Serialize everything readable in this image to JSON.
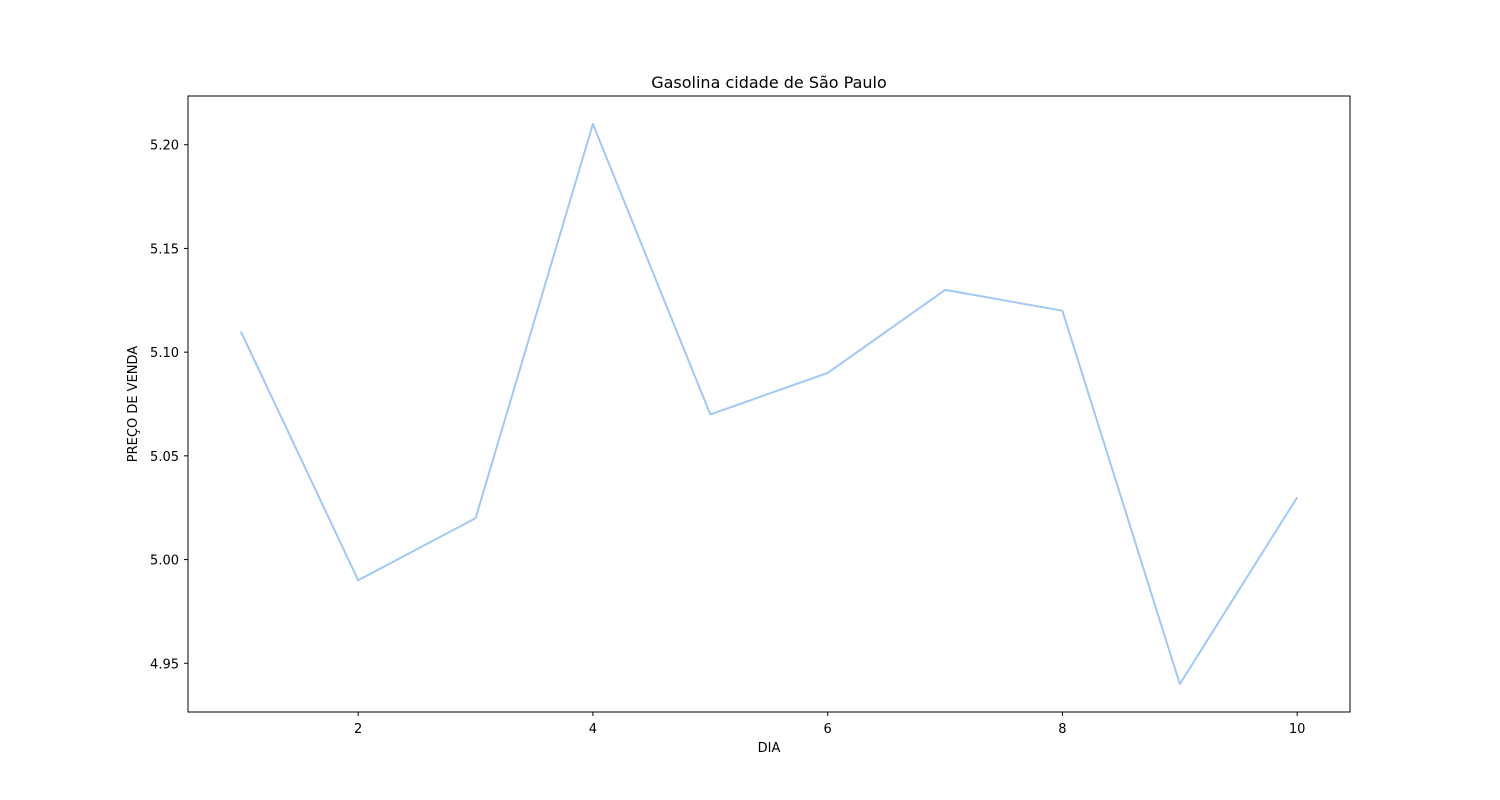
{
  "chart_data": {
    "type": "line",
    "title": "Gasolina cidade de São Paulo",
    "xlabel": "DIA",
    "ylabel": "PREÇO DE VENDA",
    "x": [
      1,
      2,
      3,
      4,
      5,
      6,
      7,
      8,
      9,
      10
    ],
    "series": [
      {
        "values": [
          5.11,
          4.99,
          5.02,
          5.21,
          5.07,
          5.09,
          5.13,
          5.12,
          4.94,
          5.03
        ],
        "color": "#a1c9f4"
      }
    ],
    "xlim": [
      0.55,
      10.45
    ],
    "ylim": [
      4.9265,
      5.2235
    ],
    "xticks": [
      2,
      4,
      6,
      8,
      10
    ],
    "xtick_labels": [
      "2",
      "4",
      "6",
      "8",
      "10"
    ],
    "yticks": [
      4.95,
      5.0,
      5.05,
      5.1,
      5.15,
      5.2
    ],
    "ytick_labels": [
      "4.95",
      "5.00",
      "5.05",
      "5.10",
      "5.15",
      "5.20"
    ],
    "grid": false,
    "legend": "none"
  }
}
